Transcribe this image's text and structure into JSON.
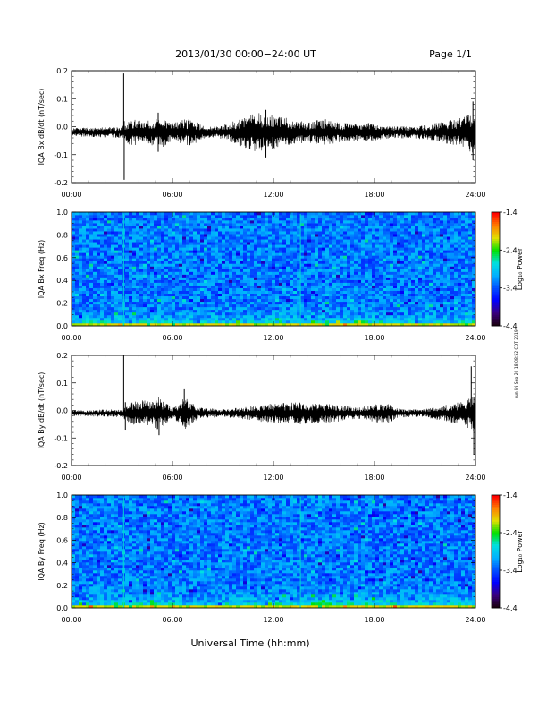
{
  "header": {
    "title": "2013/01/30  00:00−24:00 UT",
    "page": "Page 1/1"
  },
  "footer": {
    "xlabel": "Universal Time (hh:mm)",
    "side_note": "run Fri Sep 20 18:08:52 CDT 2019"
  },
  "colors": {
    "axis": "#000000",
    "trace": "#000000",
    "spectrogram_scale": [
      "#1a0010",
      "#3a0080",
      "#0000ff",
      "#0050ff",
      "#00b0ff",
      "#00e0e0",
      "#00e000",
      "#e0e000",
      "#ff8000",
      "#ff0000"
    ]
  },
  "chart_data": [
    {
      "type": "line",
      "ylabel": "IQA Bx dB/dt (nT/sec)",
      "xlim_hours": [
        0,
        24
      ],
      "ylim": [
        -0.2,
        0.2
      ],
      "x_ticks": [
        "00:00",
        "06:00",
        "12:00",
        "18:00",
        "24:00"
      ],
      "y_ticks": [
        "-0.2",
        "-0.1",
        "0.0",
        "0.1",
        "0.2"
      ],
      "grid": false,
      "series": [
        {
          "values": [
            {
              "x": 0,
              "y": -0.02
            },
            {
              "x": 1.5,
              "y": -0.02
            },
            {
              "x": 3.0,
              "y": -0.02
            },
            {
              "x": 3.1,
              "y": 0.19
            },
            {
              "x": 3.12,
              "y": -0.19
            },
            {
              "x": 3.5,
              "y": 0.05
            },
            {
              "x": 5.1,
              "y": 0.05
            },
            {
              "x": 6.0,
              "y": -0.01
            },
            {
              "x": 10.0,
              "y": 0.05
            },
            {
              "x": 11.0,
              "y": 0.07
            },
            {
              "x": 11.5,
              "y": -0.11
            },
            {
              "x": 13.0,
              "y": 0.05
            },
            {
              "x": 15.0,
              "y": -0.07
            },
            {
              "x": 18.0,
              "y": -0.02
            },
            {
              "x": 23.8,
              "y": 0.09
            },
            {
              "x": 23.9,
              "y": -0.12
            },
            {
              "x": 24,
              "y": -0.02
            }
          ],
          "envelope": [
            {
              "x": 0,
              "a": 0.015
            },
            {
              "x": 3,
              "a": 0.02
            },
            {
              "x": 3.5,
              "a": 0.05
            },
            {
              "x": 4.5,
              "a": 0.04
            },
            {
              "x": 5.2,
              "a": 0.06
            },
            {
              "x": 6,
              "a": 0.035
            },
            {
              "x": 7,
              "a": 0.05
            },
            {
              "x": 8,
              "a": 0.02
            },
            {
              "x": 9,
              "a": 0.025
            },
            {
              "x": 10,
              "a": 0.05
            },
            {
              "x": 11,
              "a": 0.07
            },
            {
              "x": 12,
              "a": 0.06
            },
            {
              "x": 13,
              "a": 0.05
            },
            {
              "x": 14,
              "a": 0.035
            },
            {
              "x": 15,
              "a": 0.05
            },
            {
              "x": 16,
              "a": 0.035
            },
            {
              "x": 17,
              "a": 0.03
            },
            {
              "x": 18,
              "a": 0.035
            },
            {
              "x": 19,
              "a": 0.02
            },
            {
              "x": 21,
              "a": 0.025
            },
            {
              "x": 23,
              "a": 0.05
            },
            {
              "x": 24,
              "a": 0.08
            }
          ],
          "spikes": [
            {
              "x": 3.1,
              "top": 0.19,
              "bottom": -0.03
            },
            {
              "x": 3.13,
              "top": 0.02,
              "bottom": -0.19
            },
            {
              "x": 5.15,
              "top": 0.05,
              "bottom": -0.09
            },
            {
              "x": 11.55,
              "top": 0.06,
              "bottom": -0.11
            },
            {
              "x": 23.85,
              "top": 0.09,
              "bottom": -0.12
            }
          ]
        }
      ]
    },
    {
      "type": "heatmap",
      "ylabel": "IQA Bx Freq (Hz)",
      "xlim_hours": [
        0,
        24
      ],
      "ylim": [
        0,
        1.0
      ],
      "x_ticks": [
        "00:00",
        "06:00",
        "12:00",
        "18:00",
        "24:00"
      ],
      "y_ticks": [
        "0.0",
        "0.2",
        "0.4",
        "0.6",
        "0.8",
        "1.0"
      ],
      "colorbar": {
        "label": "Log₁₀ Power",
        "ticks": [
          "-1.4",
          "-2.4",
          "-3.4",
          "-4.4"
        ],
        "range": [
          -4.4,
          -1.4
        ]
      },
      "vertical_lines_hours": [
        3.1,
        13.6
      ],
      "low_frequency_enhancement": [
        {
          "x": 0,
          "level": 0.6
        },
        {
          "x": 3,
          "level": 0.7
        },
        {
          "x": 5,
          "level": 0.8
        },
        {
          "x": 7,
          "level": 0.6
        },
        {
          "x": 11,
          "level": 0.7
        },
        {
          "x": 14,
          "level": 0.9
        },
        {
          "x": 16,
          "level": 0.9
        },
        {
          "x": 19,
          "level": 0.7
        },
        {
          "x": 22,
          "level": 0.6
        },
        {
          "x": 24,
          "level": 0.8
        }
      ]
    },
    {
      "type": "line",
      "ylabel": "IQA By dB/dt (nT/sec)",
      "xlim_hours": [
        0,
        24
      ],
      "ylim": [
        -0.2,
        0.2
      ],
      "x_ticks": [
        "00:00",
        "06:00",
        "12:00",
        "18:00",
        "24:00"
      ],
      "y_ticks": [
        "-0.2",
        "-0.1",
        "0.0",
        "0.1",
        "0.2"
      ],
      "grid": false,
      "series": [
        {
          "values": [
            {
              "x": 0,
              "y": -0.01
            },
            {
              "x": 3.0,
              "y": -0.01
            },
            {
              "x": 3.1,
              "y": 0.2
            },
            {
              "x": 3.2,
              "y": -0.07
            },
            {
              "x": 5.0,
              "y": 0.07
            },
            {
              "x": 5.2,
              "y": -0.09
            },
            {
              "x": 6.7,
              "y": 0.08
            },
            {
              "x": 7.0,
              "y": -0.05
            },
            {
              "x": 13.0,
              "y": 0.04
            },
            {
              "x": 18.8,
              "y": 0.05
            },
            {
              "x": 23.8,
              "y": 0.16
            },
            {
              "x": 23.9,
              "y": -0.16
            },
            {
              "x": 24,
              "y": -0.01
            }
          ],
          "envelope": [
            {
              "x": 0,
              "a": 0.01
            },
            {
              "x": 3,
              "a": 0.015
            },
            {
              "x": 3.5,
              "a": 0.04
            },
            {
              "x": 4.5,
              "a": 0.05
            },
            {
              "x": 5.2,
              "a": 0.06
            },
            {
              "x": 6,
              "a": 0.02
            },
            {
              "x": 6.8,
              "a": 0.06
            },
            {
              "x": 7.5,
              "a": 0.02
            },
            {
              "x": 9,
              "a": 0.015
            },
            {
              "x": 10,
              "a": 0.02
            },
            {
              "x": 11,
              "a": 0.03
            },
            {
              "x": 12,
              "a": 0.035
            },
            {
              "x": 13,
              "a": 0.04
            },
            {
              "x": 14,
              "a": 0.04
            },
            {
              "x": 15,
              "a": 0.035
            },
            {
              "x": 16,
              "a": 0.03
            },
            {
              "x": 17,
              "a": 0.02
            },
            {
              "x": 18.7,
              "a": 0.04
            },
            {
              "x": 19.5,
              "a": 0.015
            },
            {
              "x": 21,
              "a": 0.015
            },
            {
              "x": 23,
              "a": 0.04
            },
            {
              "x": 24,
              "a": 0.07
            }
          ],
          "spikes": [
            {
              "x": 3.1,
              "top": 0.2,
              "bottom": -0.02
            },
            {
              "x": 3.2,
              "top": 0.03,
              "bottom": -0.07
            },
            {
              "x": 5.2,
              "top": 0.02,
              "bottom": -0.09
            },
            {
              "x": 6.7,
              "top": 0.08,
              "bottom": -0.02
            },
            {
              "x": 23.75,
              "top": 0.16,
              "bottom": -0.05
            },
            {
              "x": 23.9,
              "top": 0.05,
              "bottom": -0.16
            }
          ]
        }
      ]
    },
    {
      "type": "heatmap",
      "ylabel": "IQA By Freq (Hz)",
      "xlim_hours": [
        0,
        24
      ],
      "ylim": [
        0,
        1.0
      ],
      "x_ticks": [
        "00:00",
        "06:00",
        "12:00",
        "18:00",
        "24:00"
      ],
      "y_ticks": [
        "0.0",
        "0.2",
        "0.4",
        "0.6",
        "0.8",
        "1.0"
      ],
      "colorbar": {
        "label": "Log₁₀ Power",
        "ticks": [
          "-1.4",
          "-2.4",
          "-3.4",
          "-4.4"
        ],
        "range": [
          -4.4,
          -1.4
        ]
      },
      "vertical_lines_hours": [
        3.1,
        13.6
      ],
      "low_frequency_enhancement": [
        {
          "x": 0,
          "level": 0.7
        },
        {
          "x": 3,
          "level": 0.8
        },
        {
          "x": 5,
          "level": 0.9
        },
        {
          "x": 7,
          "level": 0.6
        },
        {
          "x": 11,
          "level": 0.7
        },
        {
          "x": 14,
          "level": 0.9
        },
        {
          "x": 16,
          "level": 1.0
        },
        {
          "x": 18,
          "level": 0.9
        },
        {
          "x": 21,
          "level": 0.7
        },
        {
          "x": 24,
          "level": 0.8
        }
      ]
    }
  ]
}
